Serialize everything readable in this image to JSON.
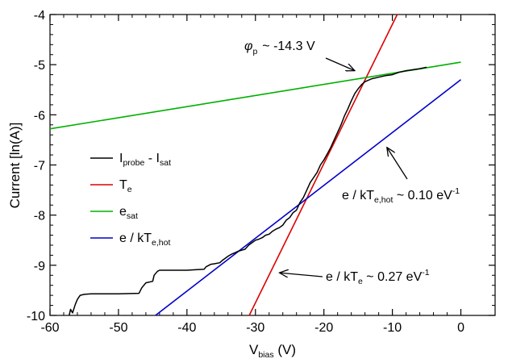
{
  "chart_data": {
    "type": "line",
    "xlabel": {
      "main": "V",
      "sub": "bias",
      "rest": " (V)"
    },
    "ylabel": "Current [ln(A)]",
    "xlim": [
      -60,
      5
    ],
    "ylim": [
      -10,
      -4
    ],
    "x_ticks": [
      -60,
      -50,
      -40,
      -30,
      -20,
      -10,
      0
    ],
    "y_ticks": [
      -10,
      -9,
      -8,
      -7,
      -6,
      -5,
      -4
    ],
    "grid": false,
    "legend_position": "center-left",
    "legend": [
      {
        "main": "I",
        "sub": "probe",
        "mid": " - I",
        "sub2": "sat",
        "color": "#000000"
      },
      {
        "main": "T",
        "sub": "e",
        "mid": "",
        "sub2": "",
        "color": "#dd0000"
      },
      {
        "main": "e",
        "sub": "sat",
        "mid": "",
        "sub2": "",
        "color": "#00b000"
      },
      {
        "main": "e / kT",
        "sub": "e,hot",
        "mid": "",
        "sub2": "",
        "color": "#0000cc"
      }
    ],
    "series": [
      {
        "name": "I_probe - I_sat",
        "color": "#000000",
        "x": [
          -57.2,
          -57.0,
          -56.7,
          -56.4,
          -56.3,
          -56.0,
          -55.6,
          -55.0,
          -54.0,
          -50.0,
          -47.0,
          -46.6,
          -46.0,
          -45.0,
          -44.8,
          -44.3,
          -44.0,
          -43.5,
          -43.0,
          -42.5,
          -40.0,
          -37.5,
          -37.2,
          -36.5,
          -36.0,
          -35.2,
          -34.8,
          -34.3,
          -34.0,
          -33.5,
          -33.0,
          -32.5,
          -32.0,
          -31.5,
          -31.0,
          -30.5,
          -30.0,
          -29.5,
          -29.0,
          -28.5,
          -28.0,
          -27.5,
          -27.0,
          -26.5,
          -26.0,
          -25.5,
          -25.0,
          -24.5,
          -24.0,
          -23.5,
          -23.0,
          -22.5,
          -22.0,
          -21.5,
          -21.0,
          -20.5,
          -20.0,
          -19.5,
          -19.0,
          -18.5,
          -18.0,
          -17.5,
          -17.0,
          -16.5,
          -16.0,
          -15.5,
          -15.0,
          -14.5,
          -14.0,
          -13.0,
          -12.0,
          -11.0,
          -10.0,
          -9.0,
          -8.0,
          -7.0,
          -6.0,
          -5.0
        ],
        "y": [
          -10.0,
          -9.88,
          -9.95,
          -9.82,
          -9.78,
          -9.68,
          -9.6,
          -9.58,
          -9.57,
          -9.57,
          -9.56,
          -9.45,
          -9.35,
          -9.32,
          -9.2,
          -9.12,
          -9.1,
          -9.1,
          -9.1,
          -9.1,
          -9.1,
          -9.08,
          -9.03,
          -8.98,
          -8.97,
          -8.95,
          -8.9,
          -8.85,
          -8.82,
          -8.78,
          -8.75,
          -8.72,
          -8.7,
          -8.68,
          -8.6,
          -8.55,
          -8.5,
          -8.48,
          -8.45,
          -8.4,
          -8.38,
          -8.32,
          -8.28,
          -8.25,
          -8.2,
          -8.1,
          -8.05,
          -7.95,
          -7.9,
          -7.75,
          -7.65,
          -7.5,
          -7.35,
          -7.25,
          -7.15,
          -7.0,
          -6.9,
          -6.78,
          -6.65,
          -6.5,
          -6.35,
          -6.2,
          -6.02,
          -5.88,
          -5.72,
          -5.58,
          -5.48,
          -5.4,
          -5.34,
          -5.28,
          -5.25,
          -5.22,
          -5.2,
          -5.15,
          -5.12,
          -5.1,
          -5.08,
          -5.05
        ]
      },
      {
        "name": "T_e",
        "color": "#dd0000",
        "x": [
          -30.9,
          -9.3
        ],
        "y": [
          -10.0,
          -4.0
        ]
      },
      {
        "name": "e_sat",
        "color": "#00b000",
        "x": [
          -60,
          0
        ],
        "y": [
          -6.28,
          -4.95
        ]
      },
      {
        "name": "e / kT_e,hot",
        "color": "#0000cc",
        "x": [
          -44.6,
          0
        ],
        "y": [
          -10.0,
          -5.3
        ]
      }
    ],
    "annotations": [
      {
        "text": "~ -14.3 V",
        "prefix": "φ",
        "sub": "p",
        "arrow_to": [
          -15.5,
          -5.12
        ]
      },
      {
        "text_main": "e / kT",
        "sub": "e,hot",
        "rest": " ~ 0.10 eV",
        "sup": "-1",
        "arrow_to": [
          -10.8,
          -6.65
        ]
      },
      {
        "text_main": "e / kT",
        "sub": "e",
        "rest": " ~ 0.27 eV",
        "sup": "-1",
        "arrow_to": [
          -26.5,
          -9.15
        ]
      }
    ]
  }
}
